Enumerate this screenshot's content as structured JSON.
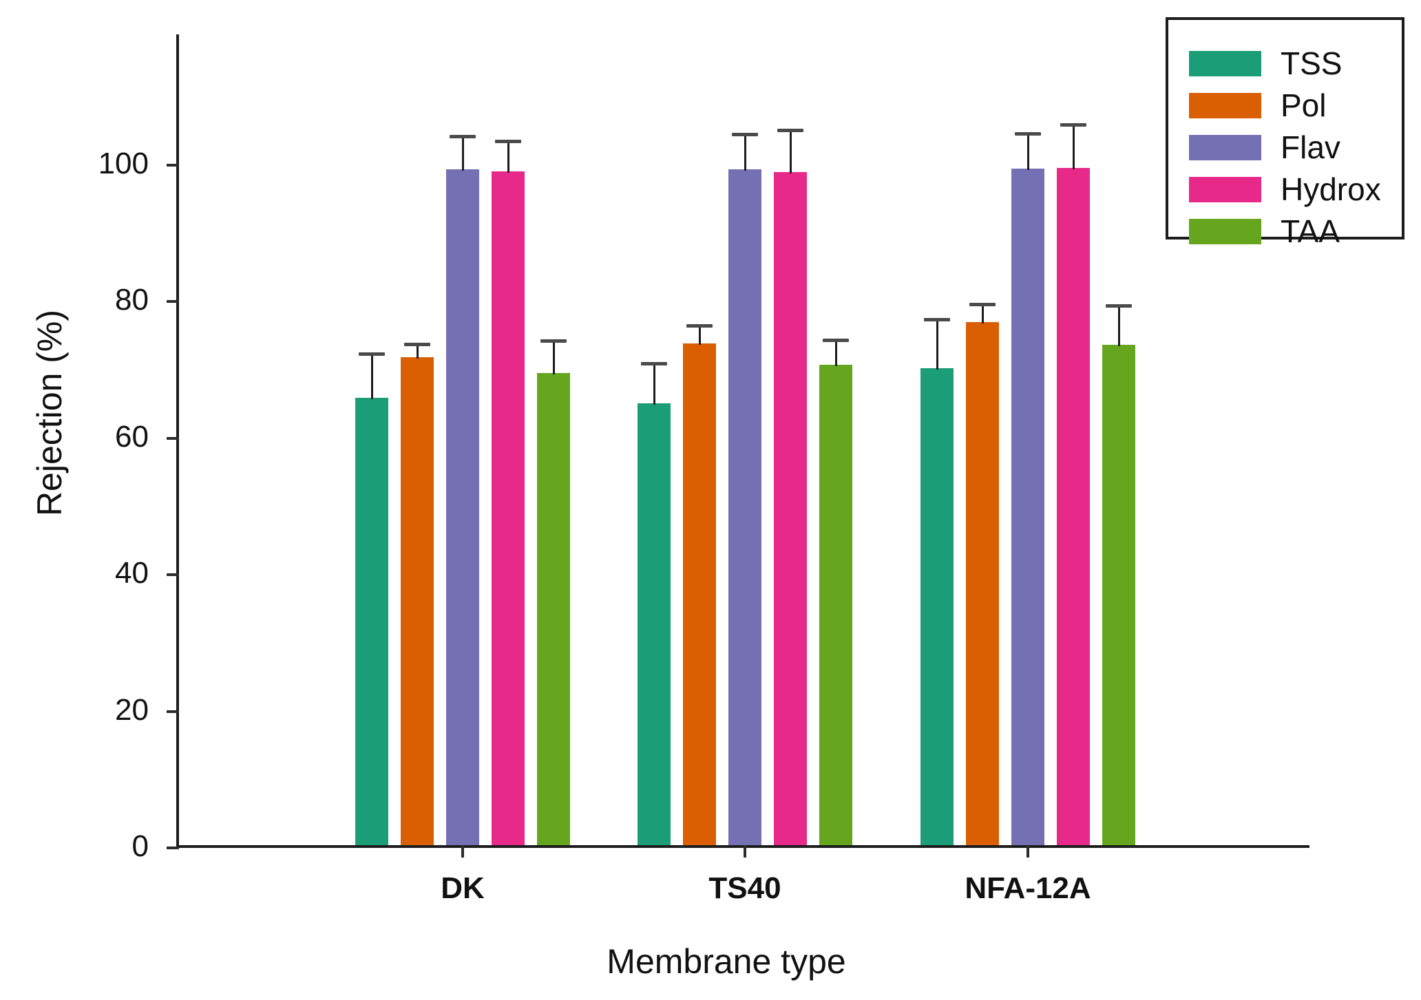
{
  "chart_data": {
    "type": "bar",
    "title": "",
    "xlabel": "Membrane type",
    "ylabel": "Rejection (%)",
    "categories": [
      "DK",
      "TS40",
      "NFA-12A"
    ],
    "series": [
      {
        "name": "TSS",
        "color": "#1b9e77",
        "values": [
          65.5,
          64.7,
          69.9
        ],
        "errors_upper": [
          6.4,
          5.8,
          7.0
        ]
      },
      {
        "name": "Pol",
        "color": "#d95f02",
        "values": [
          71.5,
          73.5,
          76.6
        ],
        "errors_upper": [
          1.8,
          2.5,
          2.5
        ]
      },
      {
        "name": "Flav",
        "color": "#7570b3",
        "values": [
          99.0,
          99.0,
          99.1
        ],
        "errors_upper": [
          4.7,
          5.0,
          5.0
        ]
      },
      {
        "name": "Hydrox",
        "color": "#e7298a",
        "values": [
          98.7,
          98.6,
          99.2
        ],
        "errors_upper": [
          4.3,
          6.0,
          6.2
        ]
      },
      {
        "name": "TAA",
        "color": "#66a61e",
        "values": [
          69.2,
          70.4,
          73.3
        ],
        "errors_upper": [
          4.6,
          3.5,
          5.6
        ]
      }
    ],
    "y_ticks": [
      0,
      20,
      40,
      60,
      80,
      100
    ],
    "ylim": [
      0,
      119
    ],
    "error_bars": "upper-only",
    "grid": "off",
    "legend_position": "top-right",
    "axis_color": "#1c1c1c"
  }
}
